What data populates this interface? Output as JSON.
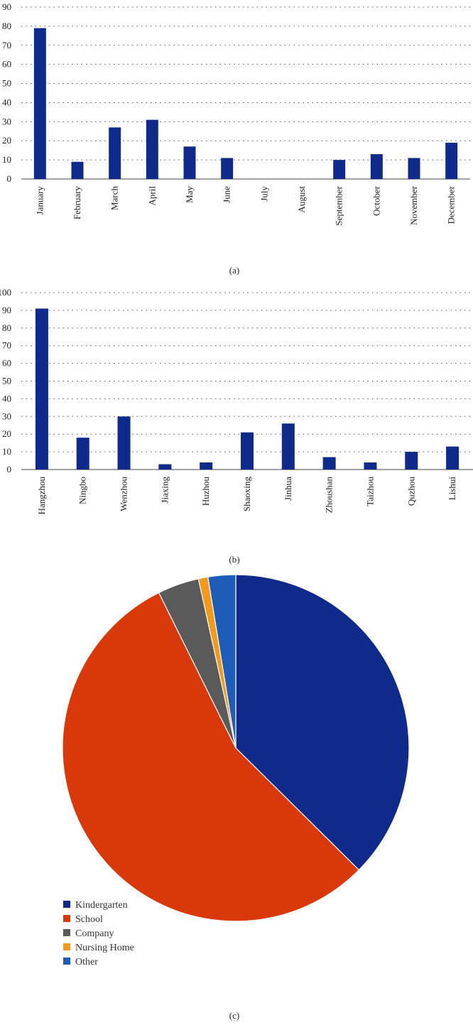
{
  "chart_data": [
    {
      "type": "bar",
      "title": "",
      "caption": "(a)",
      "categories": [
        "January",
        "February",
        "March",
        "April",
        "May",
        "June",
        "July",
        "August",
        "September",
        "October",
        "November",
        "December"
      ],
      "values": [
        79,
        9,
        27,
        31,
        17,
        11,
        0,
        0,
        10,
        13,
        11,
        19
      ],
      "ylim": [
        0,
        90
      ],
      "yticks": [
        "0",
        "10",
        "20",
        "30",
        "40",
        "50",
        "60",
        "70",
        "80",
        "90"
      ],
      "xlabel": "",
      "ylabel": "",
      "grid": "dotted-horizontal",
      "color": "#102a8c"
    },
    {
      "type": "bar",
      "title": "",
      "caption": "(b)",
      "categories": [
        "Hangzhou",
        "Ningbo",
        "Wenzhou",
        "Jiaxing",
        "Huzhou",
        "Shaoxing",
        "Jinhua",
        "Zhoushan",
        "Taizhou",
        "Quzhou",
        "Lishui"
      ],
      "values": [
        91,
        18,
        30,
        3,
        4,
        21,
        26,
        7,
        4,
        10,
        13
      ],
      "ylim": [
        0,
        100
      ],
      "yticks": [
        "0",
        "10",
        "20",
        "30",
        "40",
        "50",
        "60",
        "70",
        "80",
        "90",
        "100"
      ],
      "xlabel": "",
      "ylabel": "",
      "grid": "dotted-horizontal",
      "color": "#102a8c"
    },
    {
      "type": "pie",
      "title": "",
      "caption": "(c)",
      "legend_position": "bottom-left",
      "slices": [
        {
          "label": "Kindergarten",
          "value": 37.8,
          "color": "#102a8c"
        },
        {
          "label": "School",
          "value": 55.8,
          "color": "#d8380a"
        },
        {
          "label": "Company",
          "value": 3.9,
          "color": "#5a5a5a"
        },
        {
          "label": "Nursing Home",
          "value": 0.9,
          "color": "#f39a1d"
        },
        {
          "label": "Other",
          "value": 2.6,
          "color": "#1e5db7"
        }
      ]
    }
  ]
}
